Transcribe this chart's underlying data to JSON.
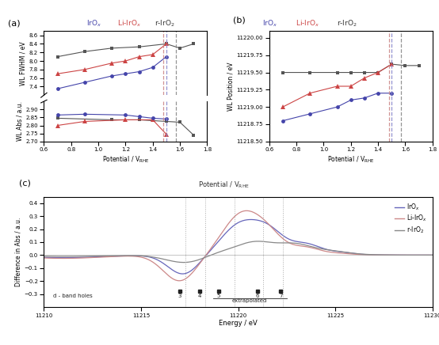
{
  "panel_a": {
    "potentials_all": [
      0.7,
      0.9,
      1.1,
      1.2,
      1.3,
      1.4,
      1.5,
      1.6,
      1.7
    ],
    "fwhm_black_x": [
      0.7,
      0.9,
      1.1,
      1.3,
      1.5,
      1.6,
      1.7
    ],
    "fwhm_black_y": [
      8.1,
      8.22,
      8.3,
      8.33,
      8.4,
      8.3,
      8.4
    ],
    "fwhm_red_x": [
      0.7,
      0.9,
      1.1,
      1.2,
      1.3,
      1.4,
      1.5
    ],
    "fwhm_red_y": [
      7.7,
      7.8,
      7.95,
      8.0,
      8.1,
      8.15,
      8.4
    ],
    "fwhm_blue_x": [
      0.7,
      0.9,
      1.1,
      1.2,
      1.3,
      1.4,
      1.5
    ],
    "fwhm_blue_y": [
      7.35,
      7.5,
      7.65,
      7.7,
      7.75,
      7.85,
      8.1
    ],
    "abs_black_x": [
      0.7,
      1.1,
      1.3,
      1.5,
      1.6,
      1.7
    ],
    "abs_black_y": [
      2.845,
      2.835,
      2.835,
      2.825,
      2.82,
      2.74
    ],
    "abs_red_x": [
      0.7,
      0.9,
      1.2,
      1.4,
      1.5
    ],
    "abs_red_y": [
      2.8,
      2.825,
      2.835,
      2.835,
      2.745
    ],
    "abs_blue_x": [
      0.7,
      0.9,
      1.2,
      1.3,
      1.4,
      1.5
    ],
    "abs_blue_y": [
      2.865,
      2.87,
      2.865,
      2.855,
      2.845,
      2.84
    ],
    "vline_IrOx": 1.5,
    "vline_LiIrOx": 1.48,
    "vline_rIrO2": 1.57,
    "ylim_fwhm": [
      7.2,
      8.7
    ],
    "ylim_abs": [
      2.7,
      2.95
    ],
    "yticks_fwhm": [
      7.4,
      7.6,
      7.8,
      8.0,
      8.2,
      8.4,
      8.6
    ],
    "yticks_abs": [
      2.7,
      2.75,
      2.8,
      2.85,
      2.9
    ],
    "xlabel": "Potential / V$_{\\mathrm{RHE}}$",
    "ylabel_fwhm": "WL FWHM / eV",
    "ylabel_abs": "WL Abs / a.u.",
    "xlim": [
      0.6,
      1.8
    ],
    "xticks": [
      0.6,
      0.8,
      1.0,
      1.2,
      1.4,
      1.6,
      1.8
    ]
  },
  "panel_b": {
    "pos_black_x": [
      0.7,
      0.9,
      1.1,
      1.2,
      1.3,
      1.4,
      1.5,
      1.6,
      1.7
    ],
    "pos_black_y": [
      11219.5,
      11219.5,
      11219.5,
      11219.5,
      11219.5,
      11219.5,
      11219.62,
      11219.6,
      11219.6
    ],
    "pos_red_x": [
      0.7,
      0.9,
      1.1,
      1.2,
      1.3,
      1.4,
      1.5
    ],
    "pos_red_y": [
      11219.0,
      11219.2,
      11219.3,
      11219.3,
      11219.42,
      11219.5,
      11219.62
    ],
    "pos_blue_x": [
      0.7,
      0.9,
      1.1,
      1.2,
      1.3,
      1.4,
      1.5
    ],
    "pos_blue_y": [
      11218.8,
      11218.9,
      11219.0,
      11219.1,
      11219.13,
      11219.2,
      11219.2
    ],
    "vline_IrOx": 1.5,
    "vline_LiIrOx": 1.48,
    "vline_rIrO2": 1.57,
    "ylim": [
      11218.5,
      11220.1
    ],
    "yticks": [
      11218.5,
      11218.75,
      11219.0,
      11219.25,
      11219.5,
      11219.75,
      11220.0
    ],
    "xlabel": "Potential / V$_{\\mathrm{RHE}}$",
    "ylabel": "WL Position / eV",
    "xlim": [
      0.6,
      1.8
    ],
    "xticks": [
      0.6,
      0.8,
      1.0,
      1.2,
      1.4,
      1.6,
      1.8
    ]
  },
  "panel_c": {
    "vlines": [
      11217.3,
      11218.3,
      11219.8,
      11221.3,
      11222.3
    ],
    "dband_x": [
      11217.0,
      11218.0,
      11219.0,
      11221.0,
      11222.2
    ],
    "dband_labels": [
      "3",
      "4",
      "5",
      "6",
      "7"
    ],
    "ylim": [
      -0.4,
      0.45
    ],
    "yticks": [
      -0.3,
      -0.2,
      -0.1,
      0.0,
      0.1,
      0.2,
      0.3,
      0.4
    ],
    "xlim": [
      11210,
      11230
    ],
    "xticks": [
      11210,
      11215,
      11220,
      11225,
      11230
    ],
    "xlabel": "Energy / eV",
    "ylabel": "Difference in Abs / a.u."
  },
  "colors": {
    "black": "#555555",
    "red": "#cc4444",
    "blue": "#4444aa",
    "IrOx_label": "#4444aa",
    "LiIrOx_label": "#cc4444",
    "rIrO2_label": "#333333",
    "vline_IrOx": "#8888cc",
    "vline_LiIrOx": "#cc8888",
    "vline_rIrO2": "#888888",
    "line_IrOx": "#6666bb",
    "line_LiIrOx": "#cc8888",
    "line_rIrO2": "#888888"
  }
}
